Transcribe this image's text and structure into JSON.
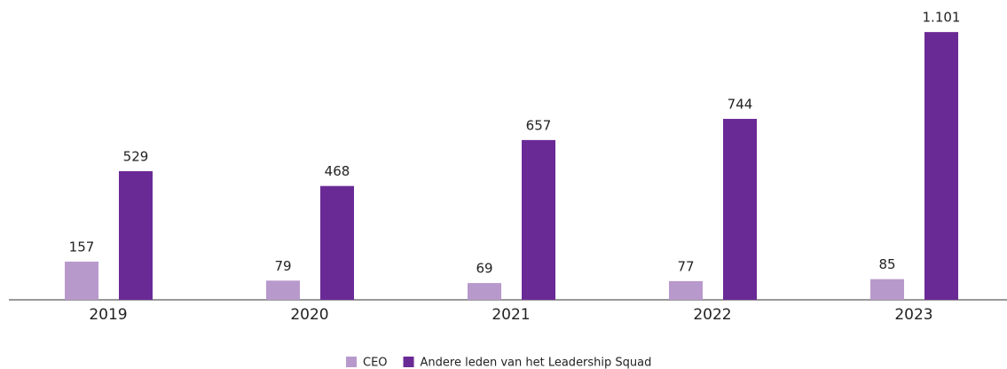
{
  "chart_data": {
    "type": "bar",
    "categories": [
      "2019",
      "2020",
      "2021",
      "2022",
      "2023"
    ],
    "series": [
      {
        "name": "CEO",
        "color": "#b899cc",
        "values": [
          157,
          79,
          69,
          77,
          85
        ]
      },
      {
        "name": "Andere leden van het Leadership Squad",
        "color": "#6a2a96",
        "values": [
          529,
          468,
          657,
          744,
          1101
        ],
        "value_labels": [
          "529",
          "468",
          "657",
          "744",
          "1.101"
        ]
      }
    ],
    "ylim": [
      0,
      1200
    ]
  }
}
